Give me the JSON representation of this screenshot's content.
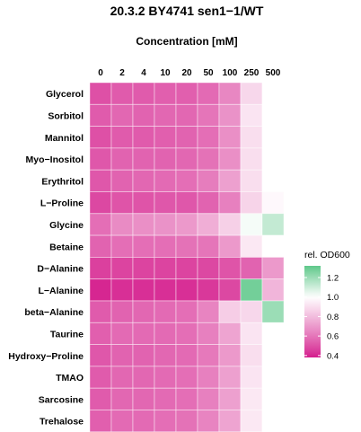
{
  "chart_data": {
    "type": "heatmap",
    "title": "20.3.2 BY4741 sen1−1/WT",
    "xlabel": "Concentration [mM]",
    "x": [
      "0",
      "2",
      "4",
      "10",
      "20",
      "50",
      "100",
      "250",
      "500"
    ],
    "y": [
      "Glycerol",
      "Sorbitol",
      "Mannitol",
      "Myo−Inositol",
      "Erythritol",
      "L−Proline",
      "Glycine",
      "Betaine",
      "D−Alanine",
      "L−Alanine",
      "beta−Alanine",
      "Taurine",
      "Hydroxy−Proline",
      "TMAO",
      "Sarcosine",
      "Trehalose"
    ],
    "values": [
      [
        0.5,
        0.53,
        0.53,
        0.54,
        0.54,
        0.57,
        0.65,
        0.88,
        1.0
      ],
      [
        0.53,
        0.56,
        0.55,
        0.56,
        0.56,
        0.6,
        0.68,
        0.92,
        1.0
      ],
      [
        0.5,
        0.53,
        0.53,
        0.54,
        0.55,
        0.58,
        0.67,
        0.9,
        1.0
      ],
      [
        0.52,
        0.55,
        0.55,
        0.55,
        0.56,
        0.59,
        0.67,
        0.9,
        1.0
      ],
      [
        0.52,
        0.55,
        0.56,
        0.57,
        0.58,
        0.62,
        0.72,
        0.9,
        1.0
      ],
      [
        0.48,
        0.51,
        0.51,
        0.52,
        0.52,
        0.55,
        0.63,
        0.87,
        0.98
      ],
      [
        0.58,
        0.66,
        0.67,
        0.68,
        0.7,
        0.76,
        0.86,
        1.02,
        1.12
      ],
      [
        0.55,
        0.58,
        0.58,
        0.58,
        0.59,
        0.6,
        0.7,
        0.93,
        1.0
      ],
      [
        0.46,
        0.47,
        0.47,
        0.47,
        0.47,
        0.48,
        0.51,
        0.55,
        0.7
      ],
      [
        0.4,
        0.42,
        0.42,
        0.42,
        0.42,
        0.44,
        0.48,
        1.28,
        0.78
      ],
      [
        0.53,
        0.55,
        0.56,
        0.57,
        0.58,
        0.64,
        0.85,
        0.88,
        1.2
      ],
      [
        0.54,
        0.57,
        0.57,
        0.57,
        0.58,
        0.63,
        0.73,
        0.92,
        1.0
      ],
      [
        0.52,
        0.55,
        0.55,
        0.56,
        0.57,
        0.61,
        0.7,
        0.9,
        1.0
      ],
      [
        0.53,
        0.56,
        0.56,
        0.57,
        0.58,
        0.63,
        0.72,
        0.92,
        1.0
      ],
      [
        0.53,
        0.56,
        0.56,
        0.57,
        0.58,
        0.63,
        0.72,
        0.93,
        1.0
      ],
      [
        0.54,
        0.57,
        0.57,
        0.58,
        0.59,
        0.64,
        0.73,
        0.93,
        1.0
      ]
    ],
    "legend": {
      "title": "rel. OD600",
      "ticks": [
        "1.2",
        "1.0",
        "0.8",
        "0.6",
        "0.4"
      ],
      "range": [
        0.38,
        1.32
      ],
      "position": "right"
    },
    "color_scale": {
      "low": "#d41c8c",
      "mid": "#ffffff",
      "mid_value": 1.0,
      "high": "#5fc88a"
    },
    "grid": true
  }
}
